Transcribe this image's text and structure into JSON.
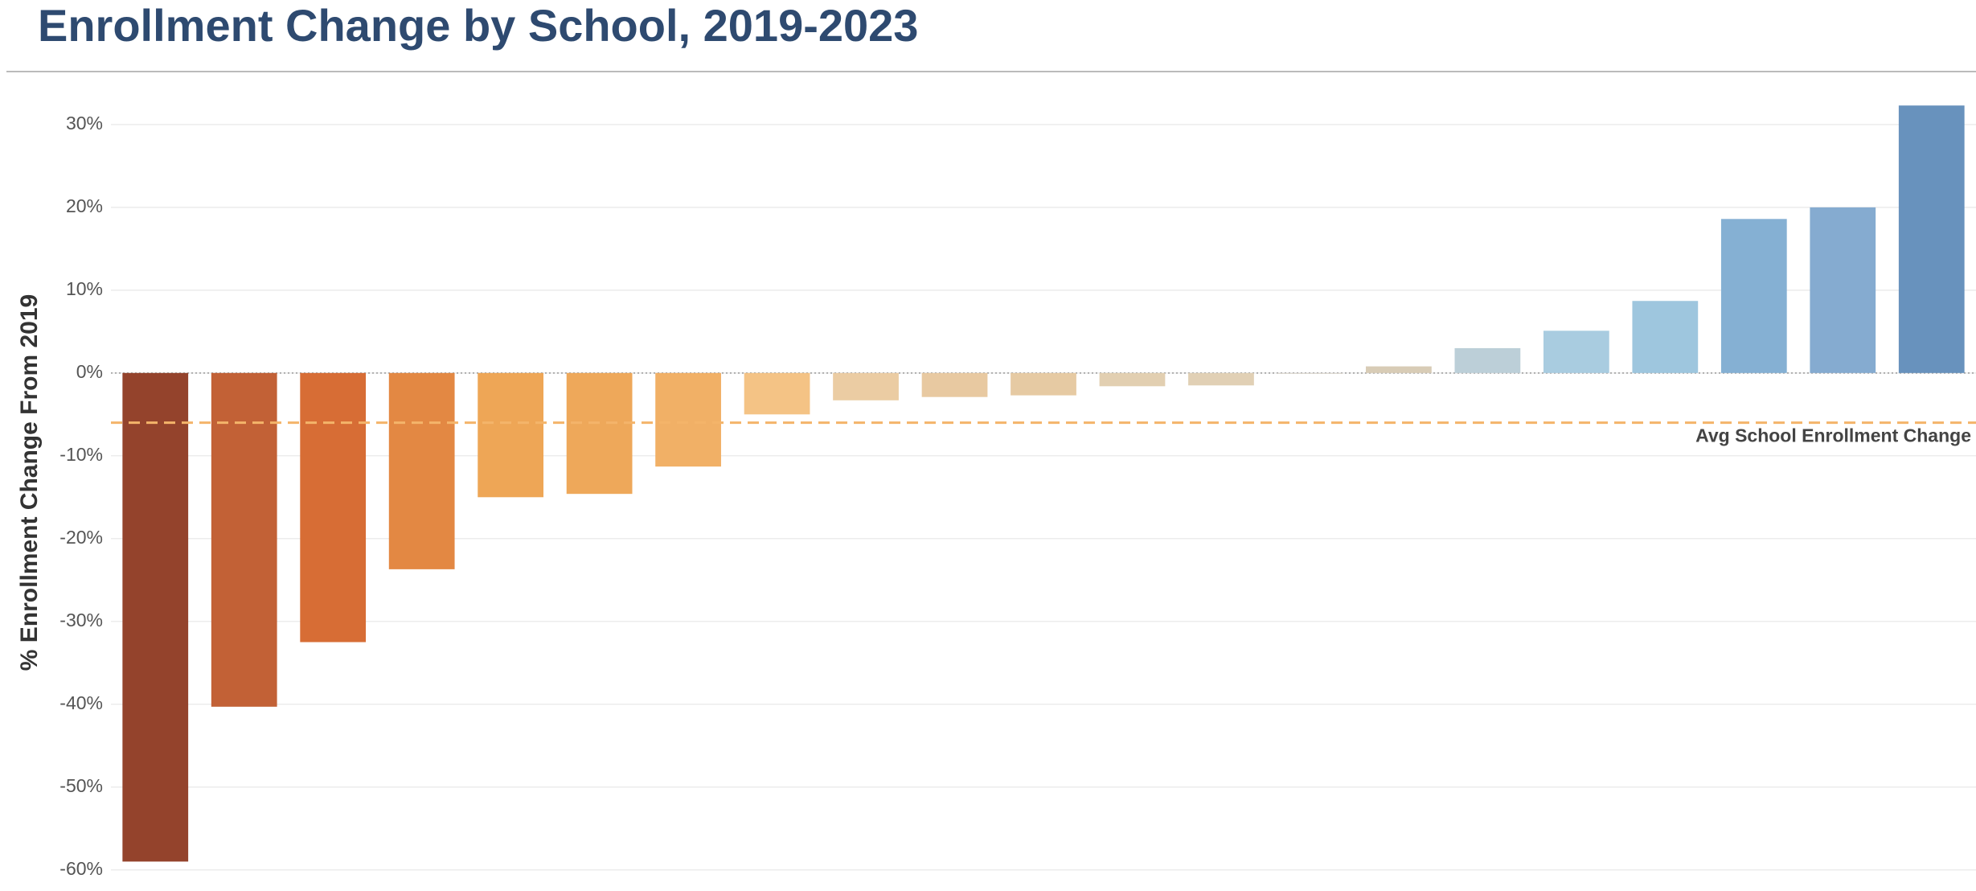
{
  "chart_data": {
    "type": "bar",
    "title": "Enrollment Change by School, 2019-2023",
    "y_label": "% Enrollment Change From 2019",
    "categories": [
      null,
      null,
      null,
      null,
      null,
      null,
      null,
      null,
      null,
      null,
      null,
      null,
      null,
      null,
      null,
      null,
      null,
      null,
      null,
      null,
      null
    ],
    "values": [
      -59,
      -40.3,
      -32.5,
      -23.7,
      -15,
      -14.6,
      -11.3,
      -5,
      -3.3,
      -2.9,
      -2.7,
      -1.6,
      -1.5,
      -0.1,
      0.8,
      3,
      5.1,
      8.7,
      18.6,
      20,
      32.3
    ],
    "colors": [
      "#94432c",
      "#c26136",
      "#d76d35",
      "#e38843",
      "#eea656",
      "#eea85a",
      "#f1b066",
      "#f4c385",
      "#ebcca3",
      "#e8c9a1",
      "#e6caa3",
      "#e2cfb1",
      "#e1d0b5",
      "#d9d4cc",
      "#d8ccb6",
      "#bccfd8",
      "#a9cce0",
      "#9ec6de",
      "#85b0d3",
      "#85abd0",
      "#6892bd"
    ],
    "ylim": [
      -61,
      33
    ],
    "yticks": [
      {
        "value": 30,
        "label": "30%"
      },
      {
        "value": 20,
        "label": "20%"
      },
      {
        "value": 10,
        "label": "10%"
      },
      {
        "value": 0,
        "label": "0%"
      },
      {
        "value": -10,
        "label": "-10%"
      },
      {
        "value": -20,
        "label": "-20%"
      },
      {
        "value": -30,
        "label": "-30%"
      },
      {
        "value": -40,
        "label": "-40%"
      },
      {
        "value": -50,
        "label": "-50%"
      },
      {
        "value": -60,
        "label": "-60%"
      }
    ],
    "grid": true,
    "reference_line": {
      "value": -6,
      "label": "Avg School Enrollment Change",
      "color": "#f4b46a"
    }
  }
}
